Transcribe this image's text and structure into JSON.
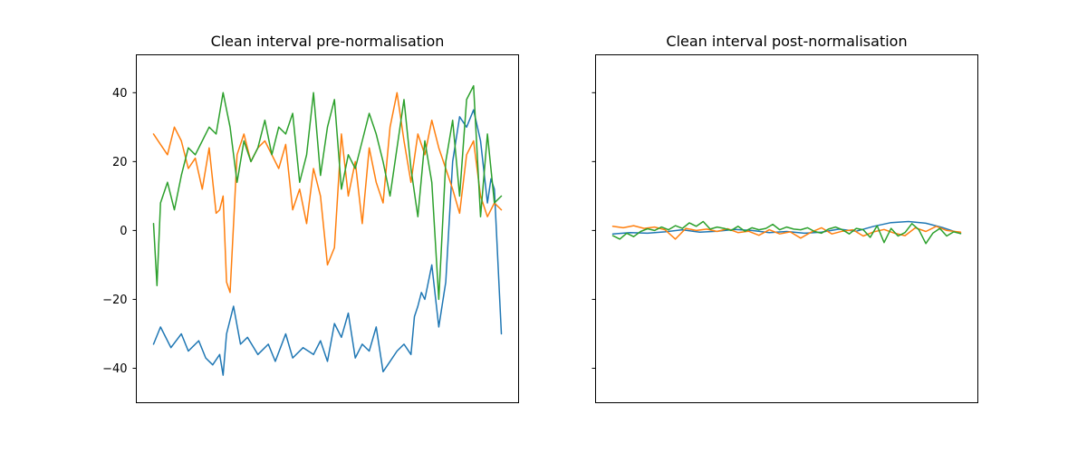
{
  "chart_data": [
    {
      "type": "line",
      "title": "Clean interval pre-normalisation",
      "xlabel": "",
      "ylabel": "",
      "xticks_visible": false,
      "ylim": [
        -50,
        51
      ],
      "yticks": [
        -40,
        -20,
        0,
        20,
        40
      ],
      "ytick_labels": [
        "−40",
        "−20",
        "0",
        "20",
        "40"
      ],
      "grid": false,
      "series": [
        {
          "color": "#1f77b4",
          "x": [
            0,
            0.02,
            0.05,
            0.08,
            0.1,
            0.13,
            0.15,
            0.17,
            0.19,
            0.2,
            0.21,
            0.23,
            0.25,
            0.27,
            0.3,
            0.33,
            0.35,
            0.38,
            0.4,
            0.43,
            0.46,
            0.48,
            0.5,
            0.52,
            0.54,
            0.56,
            0.58,
            0.6,
            0.62,
            0.64,
            0.66,
            0.68,
            0.7,
            0.72,
            0.74,
            0.75,
            0.76,
            0.77,
            0.78,
            0.8,
            0.82,
            0.84,
            0.86,
            0.88,
            0.9,
            0.92,
            0.94,
            0.96,
            0.97,
            0.98,
            1.0
          ],
          "values": [
            -33,
            -28,
            -34,
            -30,
            -35,
            -32,
            -37,
            -39,
            -36,
            -42,
            -30,
            -22,
            -33,
            -31,
            -36,
            -33,
            -38,
            -30,
            -37,
            -34,
            -36,
            -32,
            -38,
            -27,
            -31,
            -24,
            -37,
            -33,
            -35,
            -28,
            -41,
            -38,
            -35,
            -33,
            -36,
            -25,
            -22,
            -18,
            -20,
            -10,
            -28,
            -15,
            20,
            33,
            30,
            35,
            26,
            8,
            15,
            12,
            -30
          ]
        },
        {
          "color": "#ff7f0e",
          "x": [
            0,
            0.02,
            0.04,
            0.06,
            0.08,
            0.1,
            0.12,
            0.14,
            0.16,
            0.18,
            0.19,
            0.2,
            0.21,
            0.22,
            0.24,
            0.26,
            0.28,
            0.3,
            0.32,
            0.34,
            0.36,
            0.38,
            0.4,
            0.42,
            0.44,
            0.46,
            0.48,
            0.5,
            0.52,
            0.54,
            0.56,
            0.58,
            0.6,
            0.62,
            0.64,
            0.66,
            0.68,
            0.7,
            0.72,
            0.74,
            0.76,
            0.78,
            0.8,
            0.82,
            0.84,
            0.86,
            0.88,
            0.9,
            0.92,
            0.94,
            0.96,
            0.98,
            1.0
          ],
          "values": [
            28,
            25,
            22,
            30,
            26,
            18,
            21,
            12,
            24,
            5,
            6,
            10,
            -15,
            -18,
            22,
            28,
            20,
            24,
            26,
            22,
            18,
            25,
            6,
            12,
            2,
            18,
            10,
            -10,
            -5,
            28,
            10,
            20,
            2,
            24,
            14,
            8,
            30,
            40,
            26,
            14,
            28,
            22,
            32,
            24,
            18,
            12,
            5,
            22,
            26,
            10,
            4,
            8,
            6
          ]
        },
        {
          "color": "#2ca02c",
          "x": [
            0,
            0.01,
            0.02,
            0.04,
            0.06,
            0.08,
            0.1,
            0.12,
            0.14,
            0.16,
            0.18,
            0.2,
            0.22,
            0.24,
            0.26,
            0.28,
            0.3,
            0.32,
            0.34,
            0.36,
            0.38,
            0.4,
            0.42,
            0.44,
            0.46,
            0.48,
            0.5,
            0.52,
            0.54,
            0.56,
            0.58,
            0.6,
            0.62,
            0.64,
            0.66,
            0.68,
            0.7,
            0.72,
            0.74,
            0.76,
            0.78,
            0.8,
            0.82,
            0.84,
            0.86,
            0.88,
            0.9,
            0.92,
            0.94,
            0.96,
            0.98,
            1.0
          ],
          "values": [
            2,
            -16,
            8,
            14,
            6,
            16,
            24,
            22,
            26,
            30,
            28,
            40,
            30,
            14,
            26,
            20,
            24,
            32,
            22,
            30,
            28,
            34,
            14,
            22,
            40,
            16,
            30,
            38,
            12,
            22,
            18,
            26,
            34,
            28,
            20,
            10,
            24,
            38,
            18,
            4,
            26,
            14,
            -20,
            20,
            32,
            10,
            38,
            42,
            4,
            28,
            8,
            10
          ]
        }
      ]
    },
    {
      "type": "line",
      "title": "Clean interval post-normalisation",
      "xlabel": "",
      "ylabel": "",
      "xticks_visible": false,
      "ylim": [
        -50,
        51
      ],
      "yticks": [
        -40,
        -20,
        0,
        20,
        40
      ],
      "ytick_labels": [
        "",
        "",
        "",
        "",
        ""
      ],
      "grid": false,
      "series": [
        {
          "color": "#1f77b4",
          "x": [
            0,
            0.05,
            0.1,
            0.15,
            0.2,
            0.25,
            0.3,
            0.35,
            0.4,
            0.45,
            0.5,
            0.55,
            0.6,
            0.65,
            0.7,
            0.75,
            0.8,
            0.85,
            0.9,
            0.95,
            1.0
          ],
          "values": [
            -1.0,
            -0.6,
            -0.8,
            -0.4,
            0.2,
            -0.5,
            -0.2,
            0.3,
            0.0,
            -0.6,
            -0.3,
            -0.8,
            -0.5,
            0.4,
            -0.2,
            1.2,
            2.3,
            2.6,
            2.1,
            0.8,
            -0.9
          ]
        },
        {
          "color": "#ff7f0e",
          "x": [
            0,
            0.03,
            0.06,
            0.09,
            0.12,
            0.15,
            0.18,
            0.21,
            0.24,
            0.27,
            0.3,
            0.33,
            0.36,
            0.39,
            0.42,
            0.45,
            0.48,
            0.51,
            0.54,
            0.57,
            0.6,
            0.63,
            0.66,
            0.69,
            0.72,
            0.75,
            0.78,
            0.81,
            0.84,
            0.87,
            0.9,
            0.93,
            0.96,
            1.0
          ],
          "values": [
            1.2,
            0.8,
            1.4,
            0.6,
            1.0,
            0.2,
            -2.5,
            0.6,
            0.0,
            0.4,
            -0.3,
            0.5,
            -0.6,
            -0.2,
            -1.4,
            0.2,
            -1.0,
            -0.4,
            -2.2,
            -0.5,
            0.8,
            -1.0,
            -0.2,
            0.2,
            -1.6,
            -0.4,
            0.3,
            -0.8,
            -1.5,
            0.8,
            -0.3,
            1.2,
            0.0,
            -0.5
          ]
        },
        {
          "color": "#2ca02c",
          "x": [
            0,
            0.02,
            0.04,
            0.06,
            0.08,
            0.1,
            0.12,
            0.14,
            0.16,
            0.18,
            0.2,
            0.22,
            0.24,
            0.26,
            0.28,
            0.3,
            0.32,
            0.34,
            0.36,
            0.38,
            0.4,
            0.42,
            0.44,
            0.46,
            0.48,
            0.5,
            0.52,
            0.54,
            0.56,
            0.58,
            0.6,
            0.62,
            0.64,
            0.66,
            0.68,
            0.7,
            0.72,
            0.74,
            0.76,
            0.78,
            0.8,
            0.82,
            0.84,
            0.86,
            0.88,
            0.9,
            0.92,
            0.94,
            0.96,
            0.98,
            1.0
          ],
          "values": [
            -1.5,
            -2.5,
            -0.8,
            -1.8,
            -0.3,
            0.5,
            0.0,
            1.0,
            0.2,
            1.4,
            0.6,
            2.2,
            1.2,
            2.6,
            0.4,
            1.0,
            0.6,
            0.0,
            1.2,
            -0.2,
            0.8,
            0.2,
            0.6,
            1.8,
            0.2,
            1.0,
            0.4,
            0.2,
            0.8,
            -0.3,
            -0.8,
            0.4,
            1.0,
            0.2,
            -1.0,
            0.6,
            0.2,
            -2.0,
            1.4,
            -3.5,
            0.6,
            -1.6,
            -0.6,
            2.0,
            0.2,
            -3.8,
            -0.8,
            0.6,
            -1.6,
            -0.4,
            -0.9
          ]
        }
      ]
    }
  ]
}
